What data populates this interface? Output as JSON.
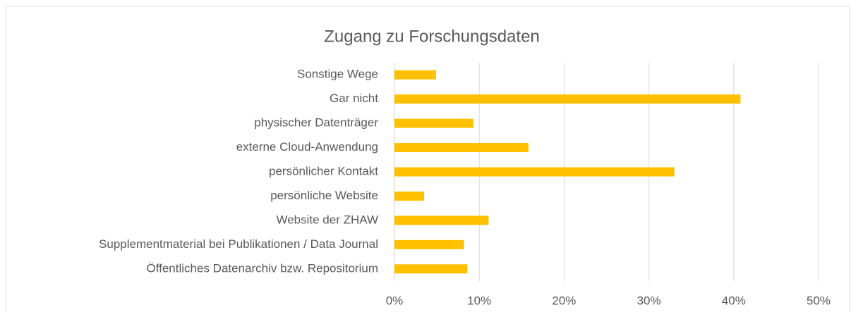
{
  "chart_data": {
    "type": "bar",
    "orientation": "horizontal",
    "title": "Zugang zu Forschungsdaten",
    "categories": [
      "Sonstige Wege",
      "Gar nicht",
      "physischer Datenträger",
      "externe Cloud-Anwendung",
      "persönlicher Kontakt",
      "persönliche Website",
      "Website der ZHAW",
      "Supplementmaterial bei Publikationen / Data Journal",
      "Öffentliches Datenarchiv bzw. Repositorium"
    ],
    "values": [
      4.9,
      40.8,
      9.3,
      15.8,
      33.0,
      3.5,
      11.1,
      8.2,
      8.6
    ],
    "color": "#ffc000",
    "xlim": [
      0,
      50
    ],
    "xticks": [
      {
        "value": 0,
        "label": "0%"
      },
      {
        "value": 10,
        "label": "10%"
      },
      {
        "value": 20,
        "label": "20%"
      },
      {
        "value": 30,
        "label": "30%"
      },
      {
        "value": 40,
        "label": "40%"
      },
      {
        "value": 50,
        "label": "50%"
      }
    ],
    "grid": true
  }
}
